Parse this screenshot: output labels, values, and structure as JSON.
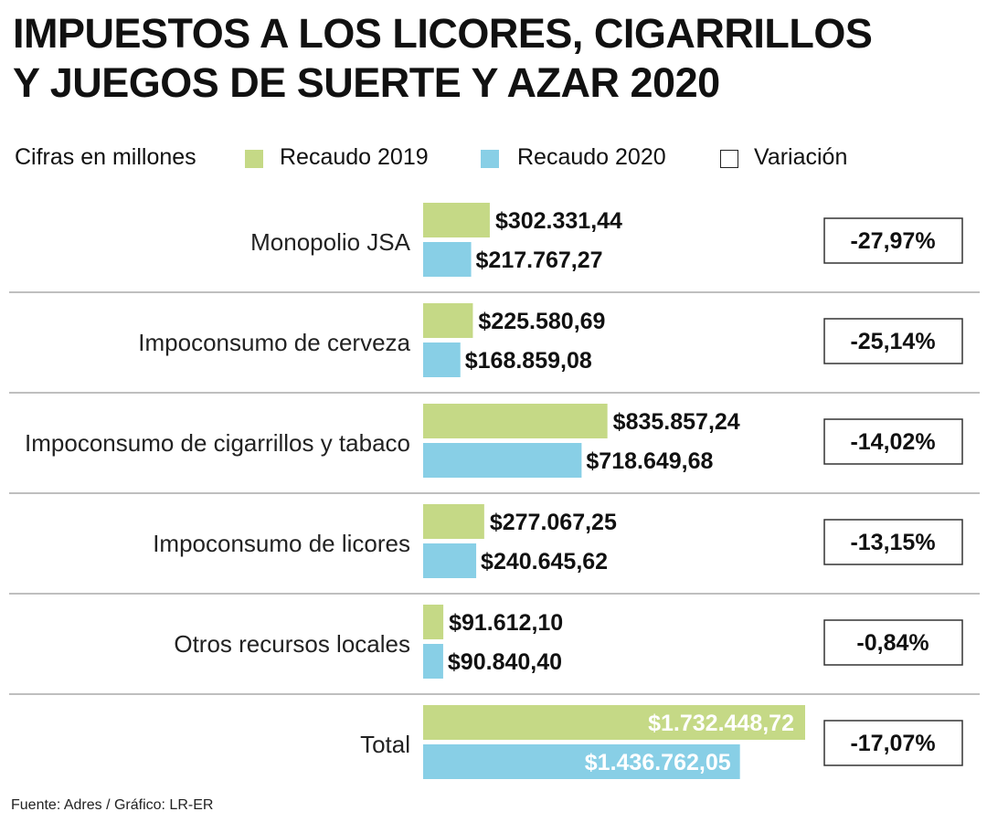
{
  "title_line1": "IMPUESTOS A LOS LICORES, CIGARRILLOS",
  "title_line2": "Y JUEGOS DE SUERTE Y AZAR 2020",
  "legend": {
    "units": "Cifras en millones",
    "series_2019": "Recaudo 2019",
    "series_2020": "Recaudo 2020",
    "variation": "Variación"
  },
  "colors": {
    "series_2019": "#c5d986",
    "series_2020": "#88cfe6",
    "separator": "#bfbfbf",
    "box_border": "#333333"
  },
  "source": "Fuente: Adres / Gráfico: LR-ER",
  "chart_data": {
    "type": "bar",
    "orientation": "horizontal",
    "title": "IMPUESTOS A LOS LICORES, CIGARRILLOS Y JUEGOS DE SUERTE Y AZAR 2020",
    "units": "Cifras en millones",
    "categories": [
      "Monopolio JSA",
      "Impoconsumo de cerveza",
      "Impoconsumo de cigarrillos y tabaco",
      "Impoconsumo de licores",
      "Otros recursos locales",
      "Total"
    ],
    "series": [
      {
        "name": "Recaudo 2019",
        "values": [
          302331.44,
          225580.69,
          835857.24,
          277067.25,
          91612.1,
          1732448.72
        ],
        "labels": [
          "$302.331,44",
          "$225.580,69",
          "$835.857,24",
          "$277.067,25",
          "$91.612,10",
          "$1.732.448,72"
        ]
      },
      {
        "name": "Recaudo 2020",
        "values": [
          217767.27,
          168859.08,
          718649.68,
          240645.62,
          90840.4,
          1436762.05
        ],
        "labels": [
          "$217.767,27",
          "$168.859,08",
          "$718.649,68",
          "$240.645,62",
          "$90.840,40",
          "$1.436.762,05"
        ]
      }
    ],
    "variation": [
      "-27,97%",
      "-25,14%",
      "-14,02%",
      "-13,15%",
      "-0,84%",
      "-17,07%"
    ],
    "xlim": [
      0,
      1732448.72
    ]
  }
}
